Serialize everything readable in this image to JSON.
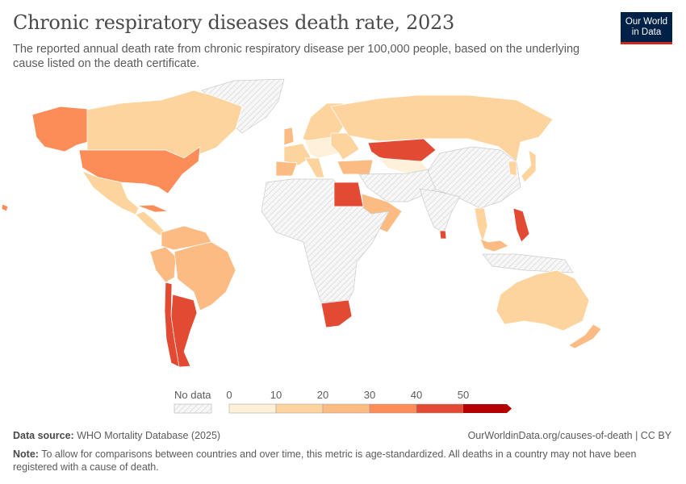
{
  "header": {
    "title": "Chronic respiratory diseases death rate, 2023",
    "subtitle": "The reported annual death rate from chronic respiratory disease per 100,000 people, based on the underlying cause listed on the death certificate.",
    "logo_line1": "Our World",
    "logo_line2": "in Data"
  },
  "legend": {
    "no_data_label": "No data",
    "ticks": [
      "0",
      "10",
      "20",
      "30",
      "40",
      "50"
    ],
    "bins": [
      {
        "min": 0,
        "max": 10,
        "color": "#fef0d9"
      },
      {
        "min": 10,
        "max": 20,
        "color": "#fdd49e"
      },
      {
        "min": 20,
        "max": 30,
        "color": "#fdbb84"
      },
      {
        "min": 30,
        "max": 40,
        "color": "#fc8d59"
      },
      {
        "min": 40,
        "max": 50,
        "color": "#e34a33"
      },
      {
        "min": 50,
        "max": null,
        "color": "#b30000"
      }
    ],
    "no_data_color": "#e8e8e8"
  },
  "map": {
    "regions": [
      {
        "id": "alaska",
        "value": 35
      },
      {
        "id": "canada",
        "value": 15
      },
      {
        "id": "greenland",
        "value": null
      },
      {
        "id": "usa",
        "value": 35
      },
      {
        "id": "mexico",
        "value": 15
      },
      {
        "id": "central-america",
        "value": 15
      },
      {
        "id": "cuba",
        "value": 35
      },
      {
        "id": "hawaii",
        "value": 35
      },
      {
        "id": "northern-south-america",
        "value": 25
      },
      {
        "id": "peru",
        "value": 25
      },
      {
        "id": "brazil",
        "value": 25
      },
      {
        "id": "argentina",
        "value": 45
      },
      {
        "id": "chile",
        "value": 45
      },
      {
        "id": "scandinavia",
        "value": 15
      },
      {
        "id": "uk",
        "value": 25
      },
      {
        "id": "western-europe",
        "value": 15
      },
      {
        "id": "central-europe",
        "value": 8
      },
      {
        "id": "iberia",
        "value": 25
      },
      {
        "id": "italy",
        "value": 15
      },
      {
        "id": "eastern-europe",
        "value": 15
      },
      {
        "id": "russia",
        "value": 15
      },
      {
        "id": "kazakhstan",
        "value": 45
      },
      {
        "id": "central-asia",
        "value": 8
      },
      {
        "id": "turkey",
        "value": 25
      },
      {
        "id": "middle-east",
        "value": null
      },
      {
        "id": "saudi-arabia",
        "value": 25
      },
      {
        "id": "china",
        "value": null
      },
      {
        "id": "india",
        "value": null
      },
      {
        "id": "africa",
        "value": null
      },
      {
        "id": "egypt",
        "value": 45
      },
      {
        "id": "south-africa",
        "value": 45
      },
      {
        "id": "japan",
        "value": 15
      },
      {
        "id": "korea",
        "value": 15
      },
      {
        "id": "thailand",
        "value": 15
      },
      {
        "id": "malaysia",
        "value": 25
      },
      {
        "id": "philippines",
        "value": 45
      },
      {
        "id": "sri-lanka",
        "value": 45
      },
      {
        "id": "indonesia",
        "value": null
      },
      {
        "id": "australia",
        "value": 15
      },
      {
        "id": "new-zealand",
        "value": 25
      }
    ]
  },
  "footer": {
    "source_label": "Data source:",
    "source_value": "WHO Mortality Database (2025)",
    "license": "OurWorldinData.org/causes-of-death | CC BY",
    "note_label": "Note:",
    "note_text": "To allow for comparisons between countries and over time, this metric is age-standardized. All deaths in a country may not have been registered with a cause of death."
  }
}
